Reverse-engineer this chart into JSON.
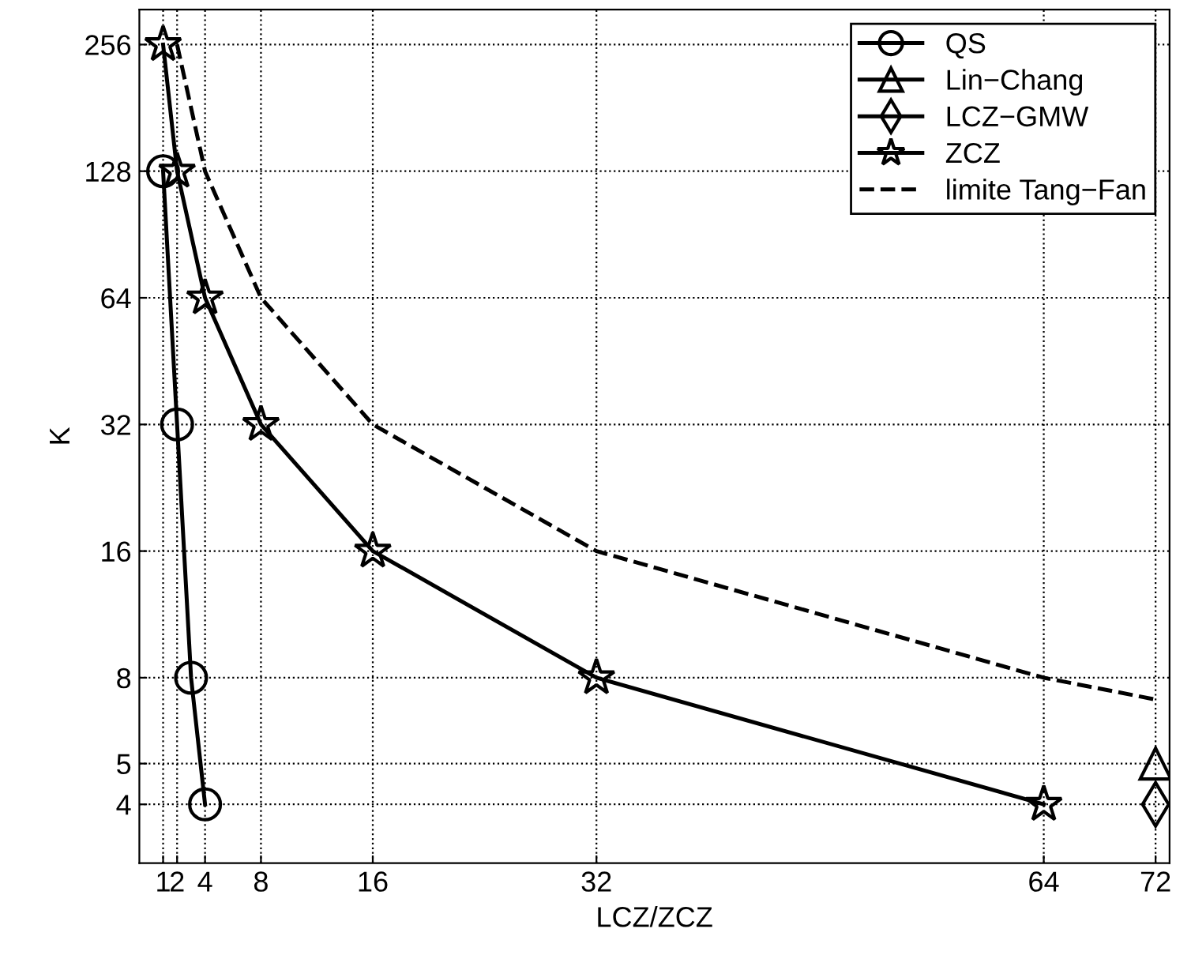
{
  "chart_data": {
    "type": "line",
    "xlabel": "LCZ/ZCZ",
    "ylabel": "K",
    "log": "y",
    "grid": true,
    "legend": "top right",
    "xlim": [
      -0.7,
      73
    ],
    "xticks": [
      1,
      2,
      4,
      8,
      16,
      32,
      64,
      72
    ],
    "ylim": [
      2.9,
      310
    ],
    "yticks": [
      4,
      5,
      8,
      16,
      32,
      64,
      128,
      256
    ],
    "series": [
      {
        "name": "QS",
        "color": "#000000",
        "marker": "circle",
        "line_style": "solid",
        "x": [
          1,
          2,
          3,
          4
        ],
        "values": [
          128,
          32,
          8,
          4
        ]
      },
      {
        "name": "Lin−Chang",
        "color": "#000000",
        "marker": "triangle",
        "line_style": "solid",
        "x": [
          72
        ],
        "values": [
          5
        ]
      },
      {
        "name": "LCZ−GMW",
        "color": "#000000",
        "marker": "diamond",
        "line_style": "solid",
        "x": [
          72
        ],
        "values": [
          4
        ]
      },
      {
        "name": "ZCZ",
        "color": "#000000",
        "marker": "star",
        "line_style": "solid",
        "x": [
          1,
          2,
          4,
          8,
          16,
          32,
          64
        ],
        "values": [
          256,
          128,
          64,
          32,
          16,
          8,
          4
        ]
      },
      {
        "name": "limite Tang−Fan",
        "color": "#000000",
        "marker": "none",
        "line_style": "dashed",
        "x": [
          2,
          4,
          8,
          16,
          32,
          64,
          72
        ],
        "values": [
          256,
          128,
          64,
          32,
          16,
          8,
          7.1
        ]
      }
    ]
  }
}
